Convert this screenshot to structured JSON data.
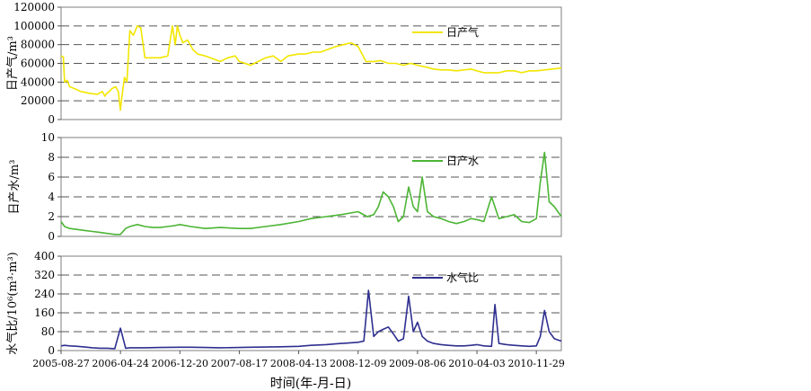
{
  "figure": {
    "xlabel": "时间(年-月-日)",
    "x_ticks": [
      "2005-08-27",
      "2006-04-24",
      "2006-12-20",
      "2007-08-17",
      "2008-04-13",
      "2008-12-09",
      "2009-08-06",
      "2010-04-03",
      "2010-11-29"
    ],
    "xlim": [
      "2005-08-27",
      "2011-03-10"
    ]
  },
  "chart_data": [
    {
      "type": "line",
      "ylabel": "日产气/m³",
      "ylim": [
        0,
        120000
      ],
      "yticks": [
        0,
        20000,
        40000,
        60000,
        80000,
        100000,
        120000
      ],
      "grid": true,
      "legend_position": "top-right",
      "color": "#f2e600",
      "series": [
        {
          "name": "日产气",
          "x": [
            "2005-08-27",
            "2005-09-05",
            "2005-09-10",
            "2005-09-20",
            "2005-10-01",
            "2005-10-20",
            "2005-11-15",
            "2005-12-20",
            "2006-01-20",
            "2006-02-10",
            "2006-02-20",
            "2006-02-28",
            "2006-03-10",
            "2006-03-20",
            "2006-04-05",
            "2006-04-15",
            "2006-04-24",
            "2006-04-30",
            "2006-05-10",
            "2006-05-20",
            "2006-06-01",
            "2006-06-15",
            "2006-07-01",
            "2006-07-15",
            "2006-08-01",
            "2006-08-15",
            "2006-09-01",
            "2006-10-01",
            "2006-11-01",
            "2006-11-20",
            "2006-12-01",
            "2006-12-10",
            "2006-12-20",
            "2007-01-01",
            "2007-01-20",
            "2007-02-10",
            "2007-03-01",
            "2007-04-01",
            "2007-05-01",
            "2007-06-01",
            "2007-07-01",
            "2007-08-01",
            "2007-08-17",
            "2007-09-10",
            "2007-10-01",
            "2007-11-01",
            "2007-12-01",
            "2008-01-01",
            "2008-02-01",
            "2008-03-01",
            "2008-04-13",
            "2008-05-10",
            "2008-06-10",
            "2008-07-10",
            "2008-08-10",
            "2008-09-10",
            "2008-10-10",
            "2008-11-10",
            "2008-12-09",
            "2009-01-10",
            "2009-02-10",
            "2009-03-10",
            "2009-04-10",
            "2009-05-10",
            "2009-06-10",
            "2009-07-10",
            "2009-08-06",
            "2009-09-10",
            "2009-10-10",
            "2009-11-10",
            "2009-12-10",
            "2010-01-10",
            "2010-02-10",
            "2010-03-10",
            "2010-04-03",
            "2010-05-01",
            "2010-06-01",
            "2010-07-01",
            "2010-08-01",
            "2010-09-01",
            "2010-10-01",
            "2010-11-01",
            "2010-11-29",
            "2011-01-01",
            "2011-02-01",
            "2011-03-10"
          ],
          "values": [
            68000,
            67000,
            40000,
            42000,
            35000,
            33000,
            30000,
            28000,
            27000,
            30000,
            25000,
            28000,
            30000,
            33000,
            35000,
            30000,
            10000,
            25000,
            45000,
            40000,
            95000,
            90000,
            100000,
            98000,
            66000,
            66000,
            66000,
            66000,
            68000,
            100000,
            80000,
            100000,
            90000,
            82000,
            85000,
            75000,
            70000,
            68000,
            65000,
            62000,
            66000,
            68000,
            62000,
            60000,
            58000,
            62000,
            66000,
            68000,
            62000,
            68000,
            70000,
            70000,
            72000,
            72000,
            75000,
            78000,
            80000,
            82000,
            78000,
            62000,
            62000,
            63000,
            60000,
            60000,
            58000,
            60000,
            58000,
            56000,
            54000,
            53000,
            53000,
            52000,
            53000,
            54000,
            52000,
            50000,
            50000,
            50000,
            52000,
            52000,
            50000,
            52000,
            52000,
            53000,
            54000,
            55000
          ]
        }
      ]
    },
    {
      "type": "line",
      "ylabel": "日产水/m³",
      "ylim": [
        0,
        10
      ],
      "yticks": [
        0,
        2,
        4,
        6,
        8,
        10
      ],
      "grid": true,
      "legend_position": "top-right",
      "color": "#4cb535",
      "series": [
        {
          "name": "日产水",
          "x": [
            "2005-08-27",
            "2005-09-10",
            "2005-10-01",
            "2005-11-01",
            "2005-12-01",
            "2006-01-01",
            "2006-02-01",
            "2006-03-01",
            "2006-04-01",
            "2006-04-24",
            "2006-05-15",
            "2006-06-01",
            "2006-07-01",
            "2006-08-01",
            "2006-09-01",
            "2006-10-01",
            "2006-11-01",
            "2006-12-01",
            "2006-12-20",
            "2007-02-01",
            "2007-04-01",
            "2007-06-01",
            "2007-08-17",
            "2007-10-01",
            "2007-12-01",
            "2008-02-01",
            "2008-04-13",
            "2008-06-01",
            "2008-08-01",
            "2008-10-01",
            "2008-12-09",
            "2009-01-15",
            "2009-02-10",
            "2009-03-01",
            "2009-03-20",
            "2009-04-10",
            "2009-05-01",
            "2009-05-20",
            "2009-06-10",
            "2009-07-01",
            "2009-07-20",
            "2009-08-06",
            "2009-08-25",
            "2009-09-15",
            "2009-10-10",
            "2009-11-10",
            "2009-12-10",
            "2010-01-10",
            "2010-02-10",
            "2010-03-10",
            "2010-04-03",
            "2010-05-01",
            "2010-06-01",
            "2010-07-01",
            "2010-08-01",
            "2010-09-01",
            "2010-10-01",
            "2010-11-01",
            "2010-11-29",
            "2010-12-15",
            "2011-01-01",
            "2011-01-20",
            "2011-02-10",
            "2011-03-10"
          ],
          "values": [
            1.5,
            1.0,
            0.8,
            0.7,
            0.6,
            0.5,
            0.4,
            0.3,
            0.2,
            0.2,
            0.8,
            1.0,
            1.2,
            1.0,
            0.9,
            0.9,
            1.0,
            1.1,
            1.2,
            1.0,
            0.8,
            0.9,
            0.8,
            0.8,
            1.0,
            1.2,
            1.5,
            1.8,
            2.0,
            2.2,
            2.5,
            2.0,
            2.2,
            3.0,
            4.5,
            4.0,
            3.0,
            1.5,
            2.0,
            5.0,
            3.0,
            2.5,
            6.0,
            2.5,
            2.0,
            1.8,
            1.5,
            1.3,
            1.5,
            1.8,
            1.7,
            1.5,
            4.0,
            1.8,
            2.0,
            2.2,
            1.5,
            1.4,
            1.8,
            5.5,
            8.5,
            3.5,
            3.0,
            2.0
          ]
        }
      ]
    },
    {
      "type": "line",
      "ylabel": "水气比/10⁶(m³·m³)",
      "ylim": [
        0,
        400
      ],
      "yticks": [
        0,
        80,
        160,
        240,
        320,
        400
      ],
      "grid": true,
      "legend_position": "top-right",
      "color": "#2e2f8f",
      "series": [
        {
          "name": "水气比",
          "x": [
            "2005-08-27",
            "2005-09-10",
            "2005-10-01",
            "2005-11-01",
            "2005-12-01",
            "2006-01-01",
            "2006-02-01",
            "2006-03-01",
            "2006-04-01",
            "2006-04-24",
            "2006-05-15",
            "2006-06-01",
            "2006-08-01",
            "2006-10-01",
            "2006-12-20",
            "2007-02-01",
            "2007-04-01",
            "2007-06-01",
            "2007-08-17",
            "2007-10-01",
            "2007-12-01",
            "2008-02-01",
            "2008-04-13",
            "2008-06-01",
            "2008-08-01",
            "2008-10-01",
            "2008-12-09",
            "2009-01-01",
            "2009-01-20",
            "2009-02-10",
            "2009-03-01",
            "2009-03-20",
            "2009-04-10",
            "2009-05-01",
            "2009-05-20",
            "2009-06-10",
            "2009-07-01",
            "2009-07-20",
            "2009-08-06",
            "2009-08-25",
            "2009-09-15",
            "2009-10-10",
            "2009-11-10",
            "2009-12-10",
            "2010-01-10",
            "2010-02-10",
            "2010-03-10",
            "2010-04-03",
            "2010-05-01",
            "2010-06-01",
            "2010-06-15",
            "2010-07-01",
            "2010-08-01",
            "2010-09-01",
            "2010-10-01",
            "2010-11-01",
            "2010-11-29",
            "2010-12-15",
            "2011-01-01",
            "2011-01-20",
            "2011-02-10",
            "2011-03-10"
          ],
          "values": [
            20,
            22,
            20,
            18,
            15,
            12,
            10,
            10,
            8,
            95,
            10,
            12,
            12,
            13,
            14,
            14,
            13,
            12,
            13,
            14,
            15,
            16,
            18,
            22,
            25,
            30,
            35,
            40,
            255,
            60,
            80,
            90,
            100,
            70,
            40,
            50,
            230,
            80,
            120,
            60,
            40,
            30,
            25,
            22,
            20,
            20,
            22,
            25,
            20,
            18,
            195,
            30,
            25,
            22,
            20,
            18,
            20,
            60,
            170,
            80,
            50,
            40
          ]
        }
      ]
    }
  ]
}
